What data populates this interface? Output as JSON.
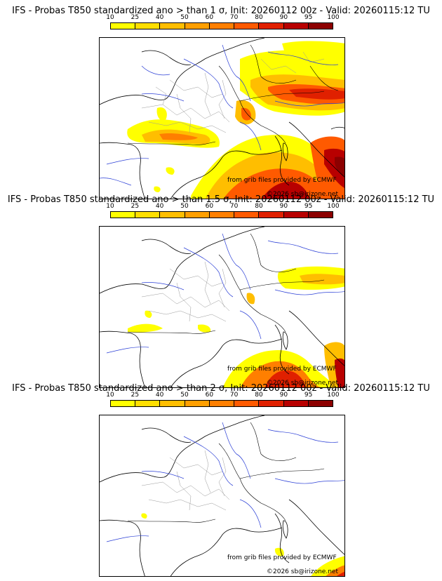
{
  "colorbar": {
    "ticks": [
      "10",
      "25",
      "40",
      "50",
      "60",
      "70",
      "80",
      "90",
      "95",
      "100"
    ],
    "colors": [
      "#ffff00",
      "#ffdf00",
      "#ffbe00",
      "#ff9f00",
      "#ff7f00",
      "#ff5a00",
      "#e02000",
      "#b80000",
      "#8c0000"
    ]
  },
  "credits": {
    "source": "from grib files provided by ECMWF",
    "copyright": "©2026 sb@irizone.net"
  },
  "panels": [
    {
      "title": "IFS - Probas T850  standardized ano > than 1 σ, Init: 20260112 00z - Valid: 20260115:12 TU"
    },
    {
      "title": "IFS - Probas T850  standardized ano > than 1.5 σ, Init: 20260112 00z - Valid: 20260115:12 TU"
    },
    {
      "title": "IFS - Probas T850  standardized ano > than 2 σ, Init: 20260112 00z - Valid: 20260115:12 TU"
    }
  ]
}
